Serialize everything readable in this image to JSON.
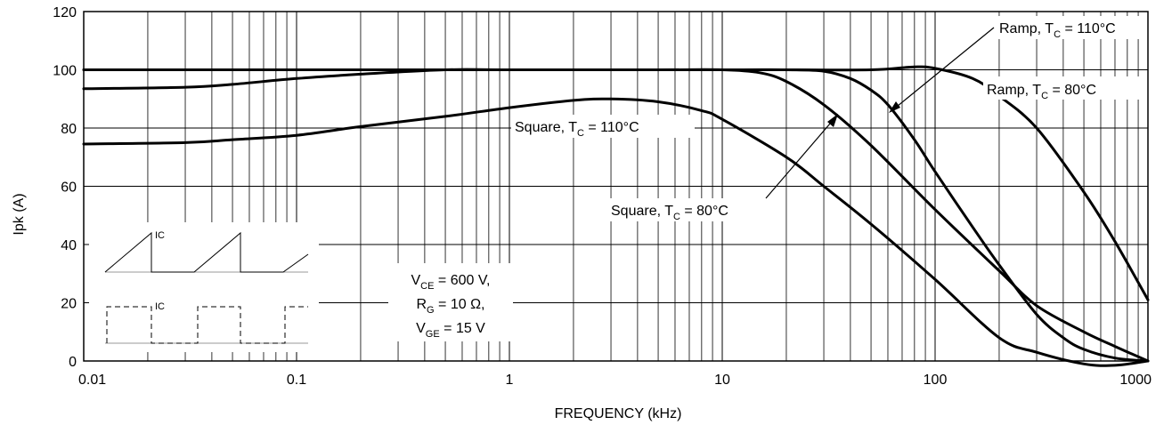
{
  "chart_data": {
    "type": "line",
    "xlabel": "FREQUENCY (kHz)",
    "ylabel": "Ipk (A)",
    "x_scale": "log",
    "xlim": [
      0.01,
      1000
    ],
    "ylim": [
      0,
      120
    ],
    "grid": true,
    "x_ticks": [
      {
        "value": 0.01,
        "label": "0.01"
      },
      {
        "value": 0.1,
        "label": "0.1"
      },
      {
        "value": 1,
        "label": "1"
      },
      {
        "value": 10,
        "label": "10"
      },
      {
        "value": 100,
        "label": "100"
      },
      {
        "value": 1000,
        "label": "1000"
      }
    ],
    "y_ticks": [
      {
        "value": 0,
        "label": "0"
      },
      {
        "value": 20,
        "label": "20"
      },
      {
        "value": 40,
        "label": "40"
      },
      {
        "value": 60,
        "label": "60"
      },
      {
        "value": 80,
        "label": "80"
      },
      {
        "value": 100,
        "label": "100"
      },
      {
        "value": 120,
        "label": "120"
      }
    ],
    "series": [
      {
        "name": "Ramp, T_C = 80°C",
        "x": [
          0.01,
          0.1,
          1,
          10,
          20,
          50,
          80,
          100,
          150,
          200,
          300,
          500,
          700,
          1000
        ],
        "y": [
          100,
          100,
          100,
          100,
          100,
          100,
          101,
          100.5,
          97,
          91,
          80,
          58,
          41,
          21
        ]
      },
      {
        "name": "Ramp, T_C = 110°C",
        "x": [
          0.01,
          0.1,
          1,
          10,
          20,
          30,
          40,
          50,
          60,
          80,
          100,
          150,
          200,
          300,
          400,
          500,
          700,
          1000
        ],
        "y": [
          100,
          100,
          100,
          100,
          100,
          99.5,
          97,
          93,
          88,
          76,
          65,
          46,
          33,
          16,
          8,
          4,
          1,
          0
        ]
      },
      {
        "name": "Square, T_C = 80°C",
        "x": [
          0.01,
          0.03,
          0.05,
          0.1,
          0.2,
          0.5,
          1,
          5,
          10,
          15,
          20,
          30,
          50,
          100,
          200,
          300,
          500,
          700,
          1000
        ],
        "y": [
          93.5,
          94,
          95,
          97,
          98.5,
          100,
          100,
          100,
          100,
          99,
          96,
          88,
          74,
          52,
          31,
          19,
          10,
          5,
          0
        ]
      },
      {
        "name": "Square, T_C = 110°C",
        "x": [
          0.01,
          0.03,
          0.05,
          0.1,
          0.2,
          0.5,
          1,
          2,
          3,
          5,
          8,
          10,
          20,
          30,
          50,
          100,
          200,
          300,
          500,
          700,
          1000
        ],
        "y": [
          74.5,
          75,
          76,
          77.5,
          80.5,
          84,
          87,
          89.5,
          90,
          89,
          86,
          83,
          70,
          60,
          47,
          28,
          8,
          3,
          -1,
          -1.5,
          0
        ]
      }
    ],
    "annotations": [
      {
        "text": "Ramp, T",
        "sub": "C",
        "after": " = 110°C"
      },
      {
        "text": "Ramp, T",
        "sub": "C",
        "after": " = 80°C"
      },
      {
        "text": "Square, T",
        "sub": "C",
        "after": " = 110°C"
      },
      {
        "text": "Square, T",
        "sub": "C",
        "after": " = 80°C"
      }
    ],
    "conditions": [
      {
        "pre": "V",
        "sub": "CE",
        "post": " = 600 V,"
      },
      {
        "pre": "R",
        "sub": "G",
        "post": " = 10 Ω,"
      },
      {
        "pre": "V",
        "sub": "GE",
        "post": " = 15 V"
      }
    ],
    "inset_labels": {
      "ramp": "IC",
      "square": "IC"
    }
  }
}
